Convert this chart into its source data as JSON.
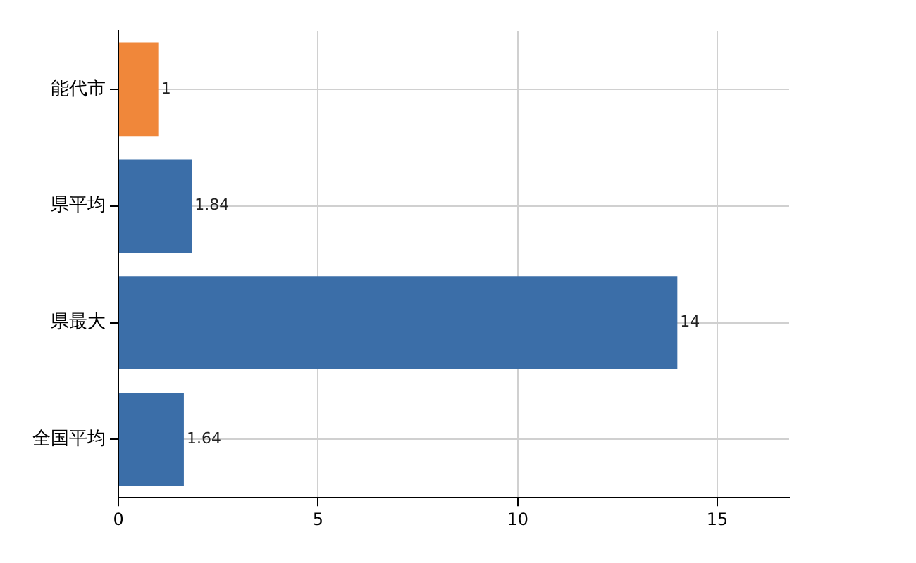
{
  "chart_data": {
    "type": "bar",
    "orientation": "horizontal",
    "categories": [
      "能代市",
      "県平均",
      "県最大",
      "全国平均"
    ],
    "values": [
      1,
      1.84,
      14,
      1.64
    ],
    "colors": [
      "#f0873a",
      "#3b6ea8",
      "#3b6ea8",
      "#3b6ea8"
    ],
    "xlim": [
      0,
      16.8
    ],
    "xticks": [
      0,
      5,
      10,
      15
    ],
    "grid": true,
    "data_labels": true,
    "legend": false
  }
}
